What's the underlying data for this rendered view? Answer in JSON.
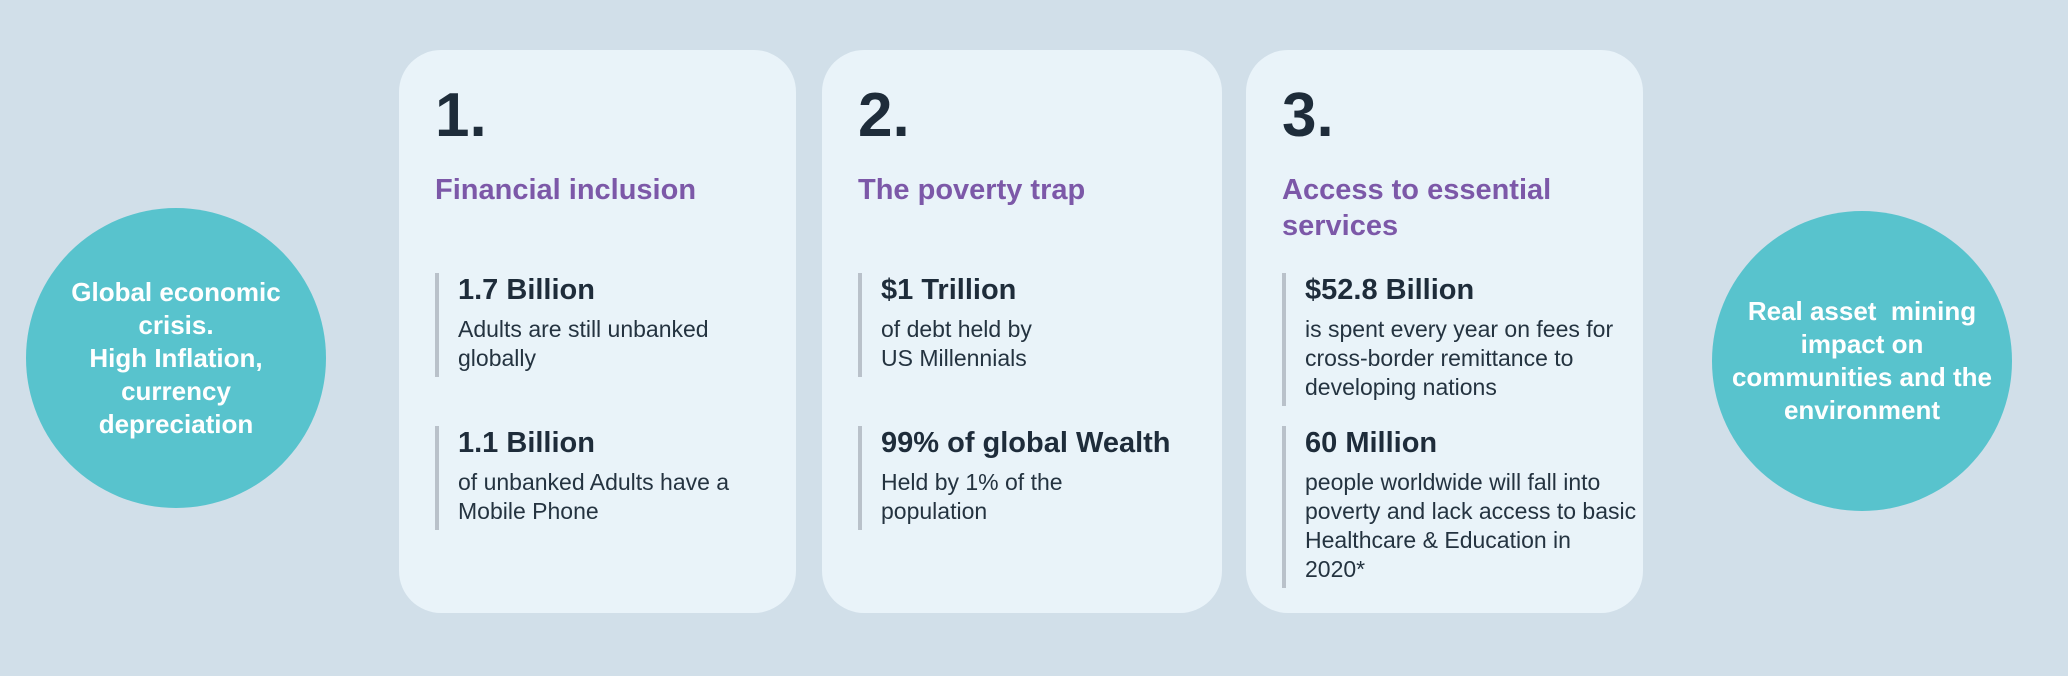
{
  "colors": {
    "background": "#d1dfe9",
    "card_background": "#e9f3f9",
    "circle_teal": "#58c3cd",
    "heading_purple": "#7c58a8",
    "text_dark_navy": "#1e2c3a",
    "accent_line_gray": "#b9c1ca",
    "circle_text_white": "#ffffff"
  },
  "left_circle": {
    "text": "Global economic\ncrisis.\nHigh Inflation,\ncurrency\ndepreciation"
  },
  "right_circle": {
    "text": "Real asset  mining\nimpact on\ncommunities and the\nenvironment"
  },
  "cards": [
    {
      "number": "1.",
      "heading": "Financial inclusion",
      "stats": [
        {
          "title": "1.7 Billion",
          "body": "Adults are still unbanked\nglobally"
        },
        {
          "title": "1.1 Billion",
          "body": "of unbanked Adults have a\nMobile Phone"
        }
      ]
    },
    {
      "number": "2.",
      "heading": "The poverty trap",
      "stats": [
        {
          "title": "$1 Trillion",
          "body": "of debt held by\nUS Millennials"
        },
        {
          "title": "99% of global Wealth",
          "body": "Held by 1% of the\npopulation"
        }
      ]
    },
    {
      "number": "3.",
      "heading": "Access to essential\nservices",
      "stats": [
        {
          "title": "$52.8 Billion",
          "body": "is spent every year on fees for\ncross-border remittance to\ndeveloping nations"
        },
        {
          "title": "60 Million",
          "body": "people worldwide will fall into\npoverty and lack access to basic\nHealthcare & Education in 2020*"
        }
      ]
    }
  ]
}
